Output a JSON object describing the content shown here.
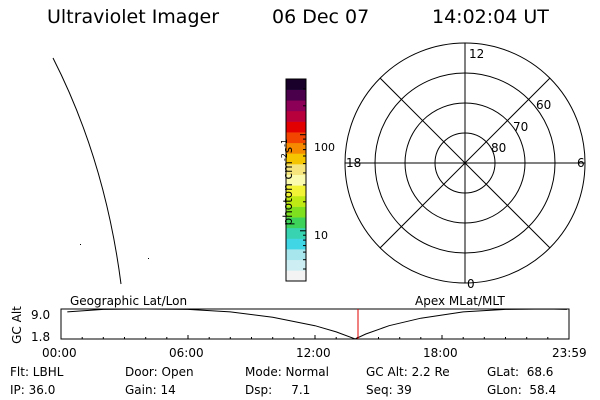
{
  "header": {
    "instrument": "Ultraviolet Imager",
    "date": "06 Dec 07",
    "time": "14:02:04 UT"
  },
  "colorbar": {
    "label": "photon cm",
    "label_sup1": "-2",
    "label_s": "s",
    "label_sup2": "-1",
    "ticks": [
      {
        "value": 100,
        "text": "100"
      },
      {
        "value": 10,
        "text": "10"
      }
    ],
    "scale": "log",
    "min": 3,
    "max": 380,
    "colors": [
      "#f3f3f3",
      "#cdeef2",
      "#a6e6ec",
      "#40d6e6",
      "#38d3b0",
      "#3dd35a",
      "#7ee01f",
      "#c0ea14",
      "#f3f336",
      "#fbfbaf",
      "#f5e57c",
      "#f5c500",
      "#f58a00",
      "#f24500",
      "#e20000",
      "#b8003d",
      "#8c0057",
      "#4b004b",
      "#18002a"
    ]
  },
  "polar_plot": {
    "labels": {
      "top": "12",
      "bottom": "0",
      "left": "18",
      "right": "6",
      "lat60": "60",
      "lat70": "70",
      "lat80": "80"
    },
    "rings_mlat": [
      80,
      70,
      60,
      50
    ]
  },
  "timeline": {
    "left_label": "Geographic Lat/Lon",
    "right_label": "Apex MLat/MLT",
    "ylabel": "GC Alt",
    "y_ticks": [
      "9.0",
      "1.8"
    ],
    "x_ticks": [
      "00:00",
      "06:00",
      "12:00",
      "18:00",
      "23:59"
    ]
  },
  "chart_data": {
    "type": "line",
    "x_unit": "UT hours",
    "xlim": [
      0,
      24
    ],
    "ylim": [
      1.8,
      9.0
    ],
    "x_ticks": [
      "00:00",
      "06:00",
      "12:00",
      "18:00",
      "23:59"
    ],
    "series": [
      {
        "x": [
          0.3,
          2,
          4,
          6,
          8,
          10,
          12,
          13,
          13.9,
          14.4,
          15.5,
          17,
          19,
          21,
          23,
          23.9
        ],
        "y": [
          8.3,
          8.9,
          9.0,
          8.9,
          8.3,
          7.0,
          5.0,
          3.5,
          1.8,
          3.0,
          5.0,
          6.8,
          8.3,
          8.9,
          9.0,
          8.9
        ]
      }
    ],
    "current_time": 14.03
  },
  "footer": {
    "col1": [
      "Flt: LBHL",
      "IP: 36.0"
    ],
    "col2": [
      "Door: Open",
      "Gain: 14"
    ],
    "col3": [
      "Mode: Normal",
      "Dsp:     7.1"
    ],
    "col4": [
      "GC Alt: 2.2 Re",
      "Seq: 39"
    ],
    "col5": [
      "GLat:  68.6",
      "GLon:  58.4"
    ]
  }
}
